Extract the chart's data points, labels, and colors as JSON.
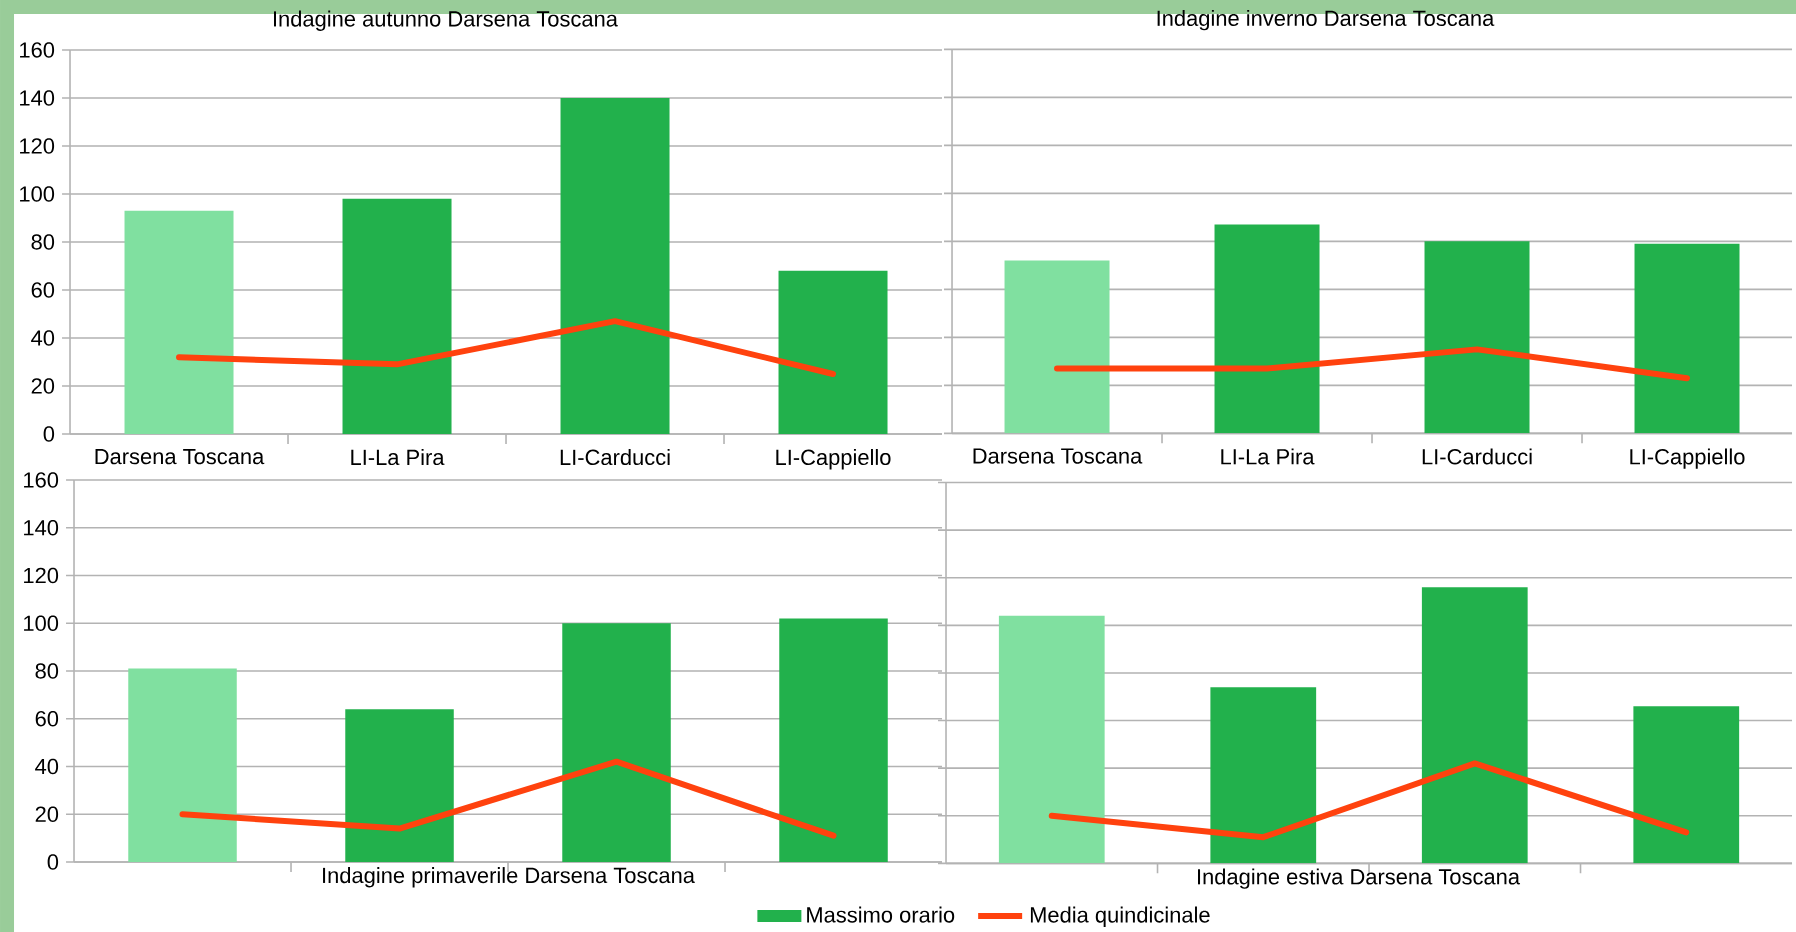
{
  "chart_data": [
    {
      "type": "bar",
      "title": "Indagine autunno Darsena Toscana",
      "categories": [
        "Darsena Toscana",
        "LI-La Pira",
        "LI-Carducci",
        "LI-Cappiello"
      ],
      "ylim": [
        0,
        160
      ],
      "yticks": [
        0,
        20,
        40,
        60,
        80,
        100,
        120,
        140,
        160
      ],
      "grid": "y",
      "series": [
        {
          "colors": [
            "#80e0a0",
            "#22b14c",
            "#22b14c",
            "#22b14c"
          ],
          "values": [
            93,
            98,
            140,
            68
          ]
        },
        {
          "type": "line",
          "color": "#ff420e",
          "values": [
            32,
            29,
            47,
            25
          ]
        }
      ]
    },
    {
      "type": "bar",
      "title": "Indagine inverno Darsena Toscana",
      "categories": [
        "Darsena Toscana",
        "LI-La Pira",
        "LI-Carducci",
        "LI-Cappiello"
      ],
      "ylim": [
        0,
        160
      ],
      "yticks": [
        0,
        20,
        40,
        60,
        80,
        100,
        120,
        140,
        160
      ],
      "grid": "y",
      "tick_labels": "x",
      "series": [
        {
          "colors": [
            "#80e0a0",
            "#22b14c",
            "#22b14c",
            "#22b14c"
          ],
          "values": [
            72,
            87,
            80,
            79
          ]
        },
        {
          "type": "line",
          "color": "#ff420e",
          "values": [
            27,
            27,
            35,
            23
          ]
        }
      ]
    },
    {
      "type": "bar",
      "title": "Indagine primaverile Darsena Toscana",
      "categories": [
        null,
        null,
        null,
        null
      ],
      "ylim": [
        0,
        160
      ],
      "yticks": [
        0,
        20,
        40,
        60,
        80,
        100,
        120,
        140,
        160
      ],
      "grid": "y",
      "series": [
        {
          "colors": [
            "#80e0a0",
            "#22b14c",
            "#22b14c",
            "#22b14c"
          ],
          "values": [
            81,
            64,
            100,
            102
          ]
        },
        {
          "type": "line",
          "color": "#ff420e",
          "values": [
            20,
            14,
            42,
            11
          ]
        }
      ]
    },
    {
      "type": "bar",
      "title": "Indagine estiva Darsena Toscana",
      "categories": [
        null,
        null,
        null,
        null
      ],
      "ylim": [
        0,
        160
      ],
      "yticks": [
        0,
        20,
        40,
        60,
        80,
        100,
        120,
        140,
        160
      ],
      "grid": "y",
      "tick_labels": false,
      "legend": "bottom",
      "series": [
        {
          "name": "Massimo orario",
          "color": "#22b14c",
          "colors": [
            "#80e0a0",
            "#22b14c",
            "#22b14c",
            "#22b14c"
          ],
          "values": [
            104,
            74,
            116,
            66
          ]
        },
        {
          "type": "line",
          "name": "Media quindicinale",
          "color": "#ff420e",
          "values": [
            20,
            11,
            42,
            13
          ]
        }
      ]
    }
  ]
}
